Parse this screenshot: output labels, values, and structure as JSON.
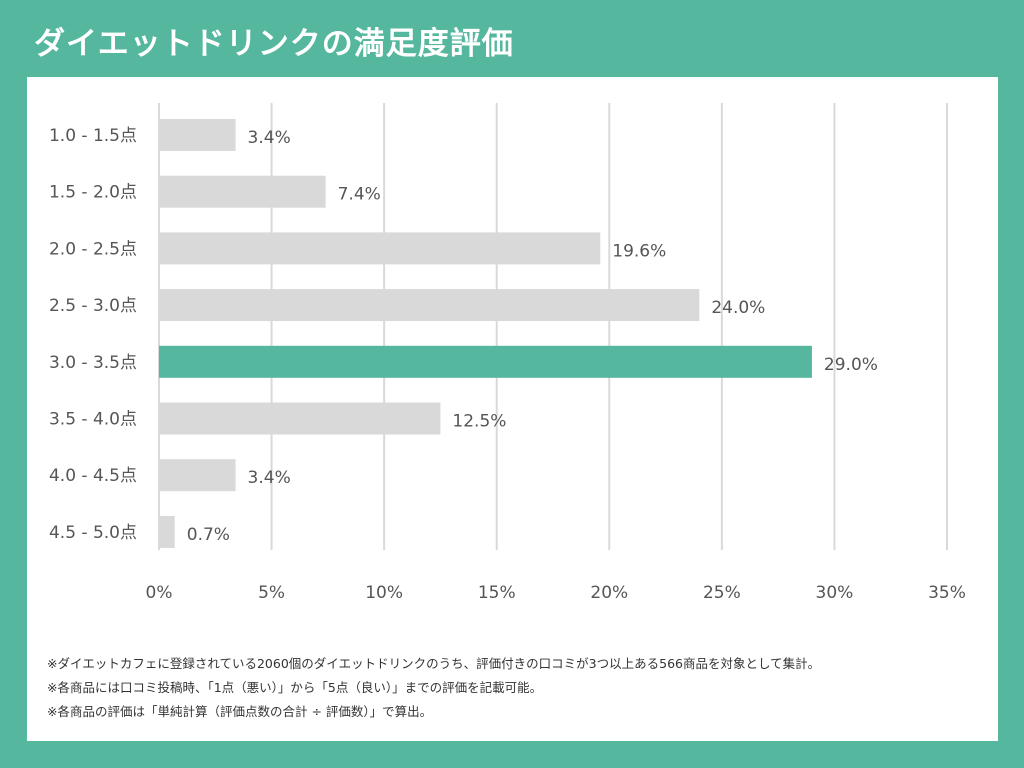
{
  "title": "ダイエットドリンクの満足度評価",
  "colors": {
    "background": "#55b79e",
    "bar_default": "#d9d9d9",
    "bar_highlight": "#55b79e",
    "grid": "#d9d9d9",
    "label_text": "#555555"
  },
  "chart_data": {
    "type": "bar",
    "orientation": "horizontal",
    "categories": [
      "1.0 - 1.5点",
      "1.5 - 2.0点",
      "2.0 - 2.5点",
      "2.5 - 3.0点",
      "3.0 - 3.5点",
      "3.5 - 4.0点",
      "4.0 - 4.5点",
      "4.5 - 5.0点"
    ],
    "values": [
      3.4,
      7.4,
      19.6,
      24.0,
      29.0,
      12.5,
      3.4,
      0.7
    ],
    "value_labels": [
      "3.4%",
      "7.4%",
      "19.6%",
      "24.0%",
      "29.0%",
      "12.5%",
      "3.4%",
      "0.7%"
    ],
    "highlight_index": 4,
    "xlim": [
      0,
      35
    ],
    "xticks": [
      0,
      5,
      10,
      15,
      20,
      25,
      30,
      35
    ],
    "xtick_labels": [
      "0%",
      "5%",
      "10%",
      "15%",
      "20%",
      "25%",
      "30%",
      "35%"
    ],
    "grid": true,
    "legend": "none"
  },
  "notes": [
    "※ダイエットカフェに登録されている2060個のダイエットドリンクのうち、評価付きの口コミが3つ以上ある566商品を対象として集計。",
    "※各商品には口コミ投稿時、「1点（悪い）」から「5点（良い）」までの評価を記載可能。",
    "※各商品の評価は「単純計算（評価点数の合計 ÷ 評価数）」で算出。"
  ]
}
